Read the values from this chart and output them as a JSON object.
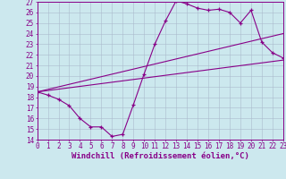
{
  "xlabel": "Windchill (Refroidissement éolien,°C)",
  "bg_color": "#cce8ee",
  "grid_color": "#aabbcc",
  "line_color": "#880088",
  "xmin": 0,
  "xmax": 23,
  "ymin": 14,
  "ymax": 27,
  "line1_x": [
    0,
    1,
    2,
    3,
    4,
    5,
    6,
    7,
    8,
    9,
    10,
    11,
    12,
    13,
    14,
    15,
    16,
    17,
    18,
    19,
    20,
    21,
    22,
    23
  ],
  "line1_y": [
    18.5,
    18.2,
    17.8,
    17.2,
    16.0,
    15.2,
    15.2,
    14.3,
    14.5,
    17.3,
    20.2,
    23.0,
    25.2,
    27.1,
    26.8,
    26.4,
    26.2,
    26.3,
    26.0,
    25.0,
    26.2,
    23.2,
    22.2,
    21.7
  ],
  "line2_x": [
    0,
    23
  ],
  "line2_y": [
    18.5,
    24.0
  ],
  "line3_x": [
    0,
    23
  ],
  "line3_y": [
    18.5,
    21.5
  ],
  "tick_fontsize": 5.5,
  "label_fontsize": 6.5
}
